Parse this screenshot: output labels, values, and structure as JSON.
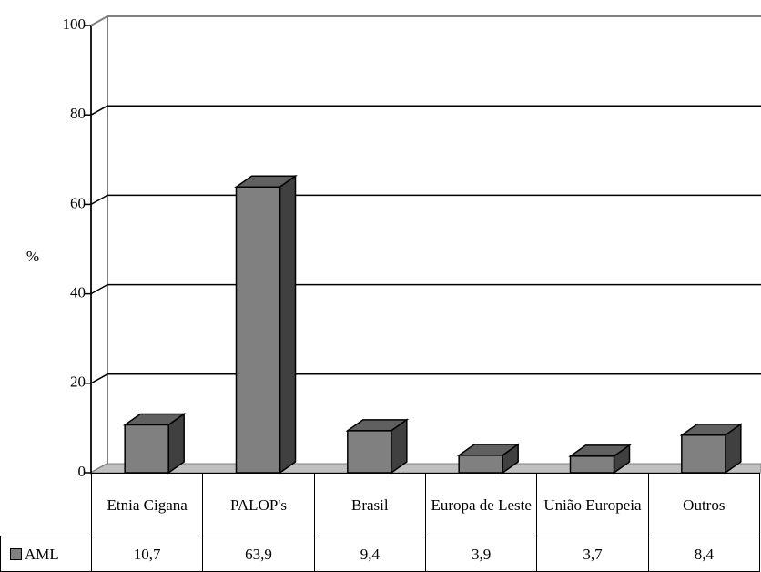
{
  "chart_data": {
    "type": "bar",
    "ylabel": "%",
    "categories": [
      "Etnia Cigana",
      "PALOP's",
      "Brasil",
      "Europa de Leste",
      "União Europeia",
      "Outros"
    ],
    "series": [
      {
        "name": "AML",
        "color": "#808080",
        "values": [
          10.7,
          63.9,
          9.4,
          3.9,
          3.7,
          8.4
        ],
        "value_labels": [
          "10,7",
          "63,9",
          "9,4",
          "3,9",
          "3,7",
          "8,4"
        ]
      }
    ],
    "ylim": [
      0,
      100
    ],
    "yticks": [
      0,
      20,
      40,
      60,
      80,
      100
    ],
    "grid": true
  }
}
